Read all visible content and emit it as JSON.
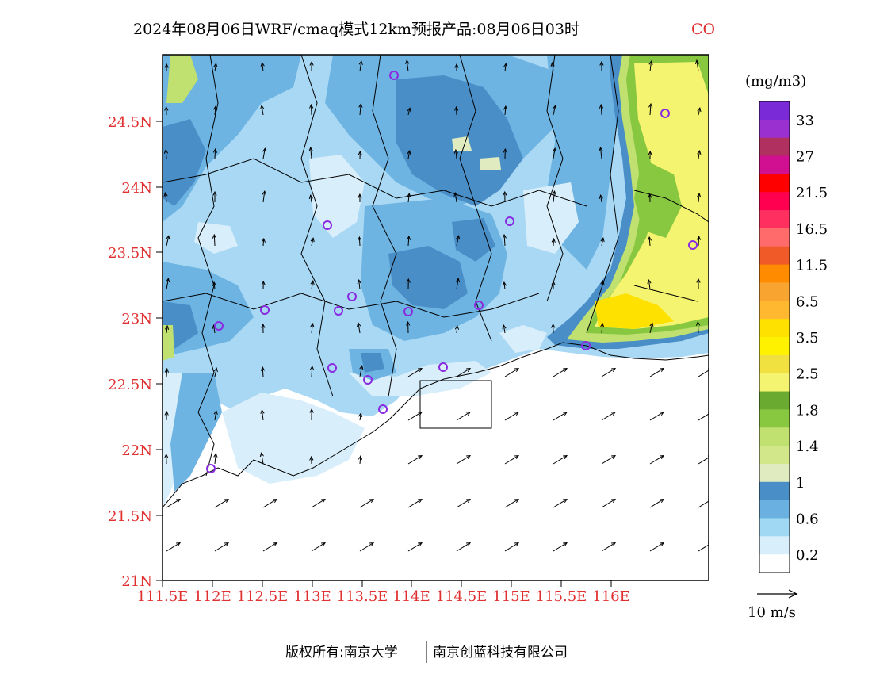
{
  "title": {
    "main": "2024年08月06日WRF/cmaq模式12km预报产品:08月06日03时",
    "species": "CO"
  },
  "axes": {
    "x_ticks": [
      "111.5E",
      "112E",
      "112.5E",
      "113E",
      "113.5E",
      "114E",
      "114.5E",
      "115E",
      "115.5E",
      "116E"
    ],
    "y_ticks": [
      "24.5N",
      "24N",
      "23.5N",
      "23N",
      "22.5N",
      "22N",
      "21.5N",
      "21N"
    ]
  },
  "colorbar": {
    "unit": "(mg/m3)",
    "labels": [
      "33",
      "27",
      "21.5",
      "16.5",
      "11.5",
      "6.5",
      "3.5",
      "2.5",
      "1.8",
      "1.4",
      "1",
      "0.6",
      "0.2"
    ],
    "colors_top_to_bottom": [
      "#7a2ad6",
      "#9b30d0",
      "#b03060",
      "#d01090",
      "#ff0000",
      "#ff0050",
      "#ff3060",
      "#ff6a6a",
      "#f05a28",
      "#ff8c00",
      "#f7a530",
      "#ffb830",
      "#ffe100",
      "#fff200",
      "#f0e040",
      "#f4f470",
      "#6aaa30",
      "#88c840",
      "#c0e070",
      "#d2e68a",
      "#e0ecc0",
      "#4a8ec8",
      "#6ab0e0",
      "#a0d8f4",
      "#d8eefa",
      "#ffffff"
    ]
  },
  "wind_legend": {
    "label": "10 m/s"
  },
  "copyright": {
    "left": "版权所有:南京大学",
    "right": "南京创蓝科技有限公司"
  },
  "colors": {
    "tick_red": "#e03030",
    "land_light": "#a8d8f4",
    "land_mid": "#6eb4e2",
    "land_dark": "#4a8ec8",
    "sea": "#ffffff",
    "high_yellow": "#f4f470",
    "high_green": "#88c840"
  },
  "stations": "purple-circle-icon"
}
